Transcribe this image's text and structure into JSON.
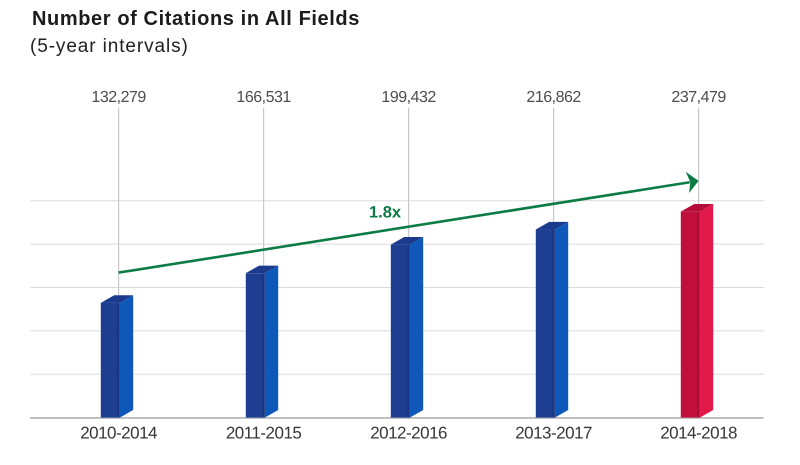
{
  "page": {
    "background": "#ffffff"
  },
  "chart_data": {
    "type": "bar",
    "title": "Number of Citations in All Fields",
    "subtitle": "(5-year intervals)",
    "categories": [
      "2010-2014",
      "2011-2015",
      "2012-2016",
      "2013-2017",
      "2014-2018"
    ],
    "values": [
      132279,
      166531,
      199432,
      216862,
      237479
    ],
    "value_labels": [
      "132,279",
      "166,531",
      "199,432",
      "216,862",
      "237,479"
    ],
    "highlight_index": 4,
    "annotation": {
      "text": "1.8x"
    },
    "xlabel": "",
    "ylabel": "",
    "ylim": [
      0,
      250000
    ],
    "gridline_step": 50000,
    "grid": "horizontal",
    "legend": "none",
    "y_axis_labels": "none",
    "bar_style": "3d-oblique",
    "colors": {
      "bar_blue_front": "#1e3e92",
      "bar_blue_side": "#0e58ba",
      "bar_blue_top": "#1b3a8c",
      "bar_blue_edge": "#152e78",
      "bar_red_front": "#c00e3d",
      "bar_red_side": "#e2174a",
      "bar_red_top": "#b40c38",
      "bar_red_edge": "#9c0930",
      "arrow_green": "#0c7c45",
      "gridline": "#dbdbdb",
      "baseline": "#b0b0b0",
      "leader_line": "#c8c8c8",
      "title_text": "#1c1c1e",
      "value_text": "#4d4d50",
      "category_text": "#37373a"
    }
  }
}
